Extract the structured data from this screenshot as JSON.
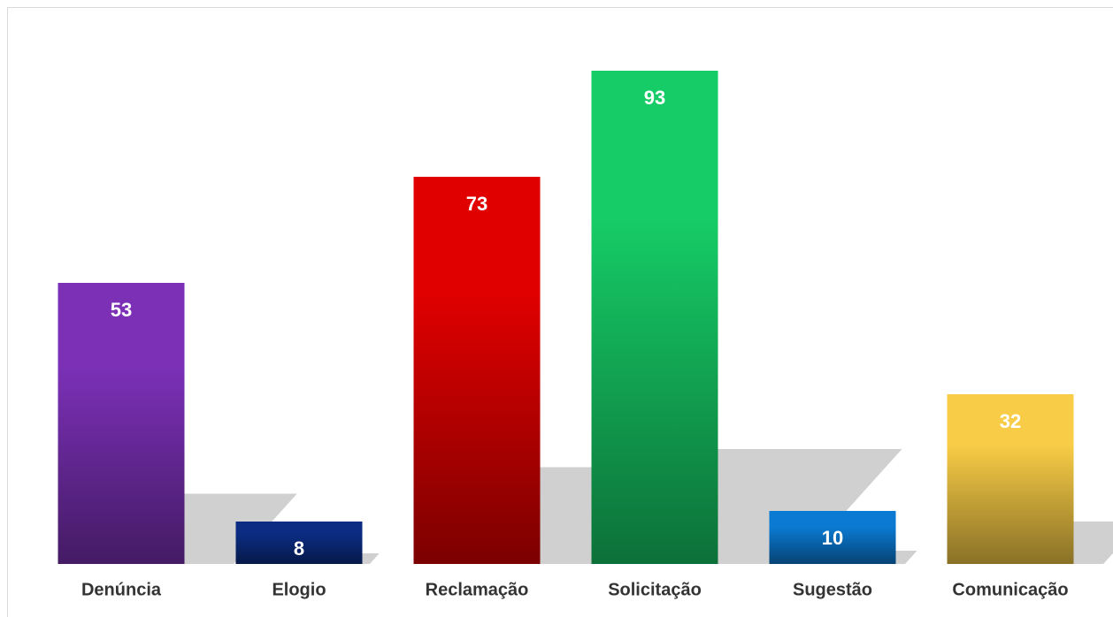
{
  "chart_data": {
    "type": "bar",
    "categories": [
      "Denúncia",
      "Elogio",
      "Reclamação",
      "Solicitação",
      "Sugestão",
      "Comunicação"
    ],
    "values": [
      53,
      8,
      73,
      93,
      10,
      32
    ],
    "colors": [
      "#7b30b6",
      "#0b2c82",
      "#e00000",
      "#16cc66",
      "#0a7ad2",
      "#f8cc46"
    ]
  }
}
